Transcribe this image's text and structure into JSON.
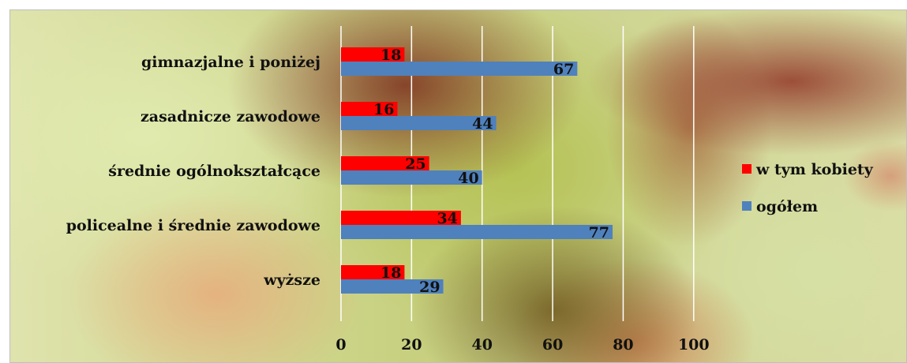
{
  "chart_data": {
    "type": "bar",
    "orientation": "horizontal",
    "categories": [
      "gimnazjalne i poniżej",
      "zasadnicze zawodowe",
      "średnie ogólnokształcące",
      "policealne i średnie zawodowe",
      "wyższe"
    ],
    "series": [
      {
        "name": "w tym kobiety",
        "values": [
          18,
          16,
          25,
          34,
          18
        ],
        "color": "#ff0000"
      },
      {
        "name": "ogółem",
        "values": [
          67,
          44,
          40,
          77,
          29
        ],
        "color": "#4f81bd"
      }
    ],
    "xlim": [
      0,
      100
    ],
    "xticks": [
      0,
      20,
      40,
      60,
      80,
      100
    ],
    "grid": true,
    "gridline_color": "#ffffff",
    "legend_position": "right",
    "data_labels": true,
    "background": "photo of a flower (decorative)"
  }
}
